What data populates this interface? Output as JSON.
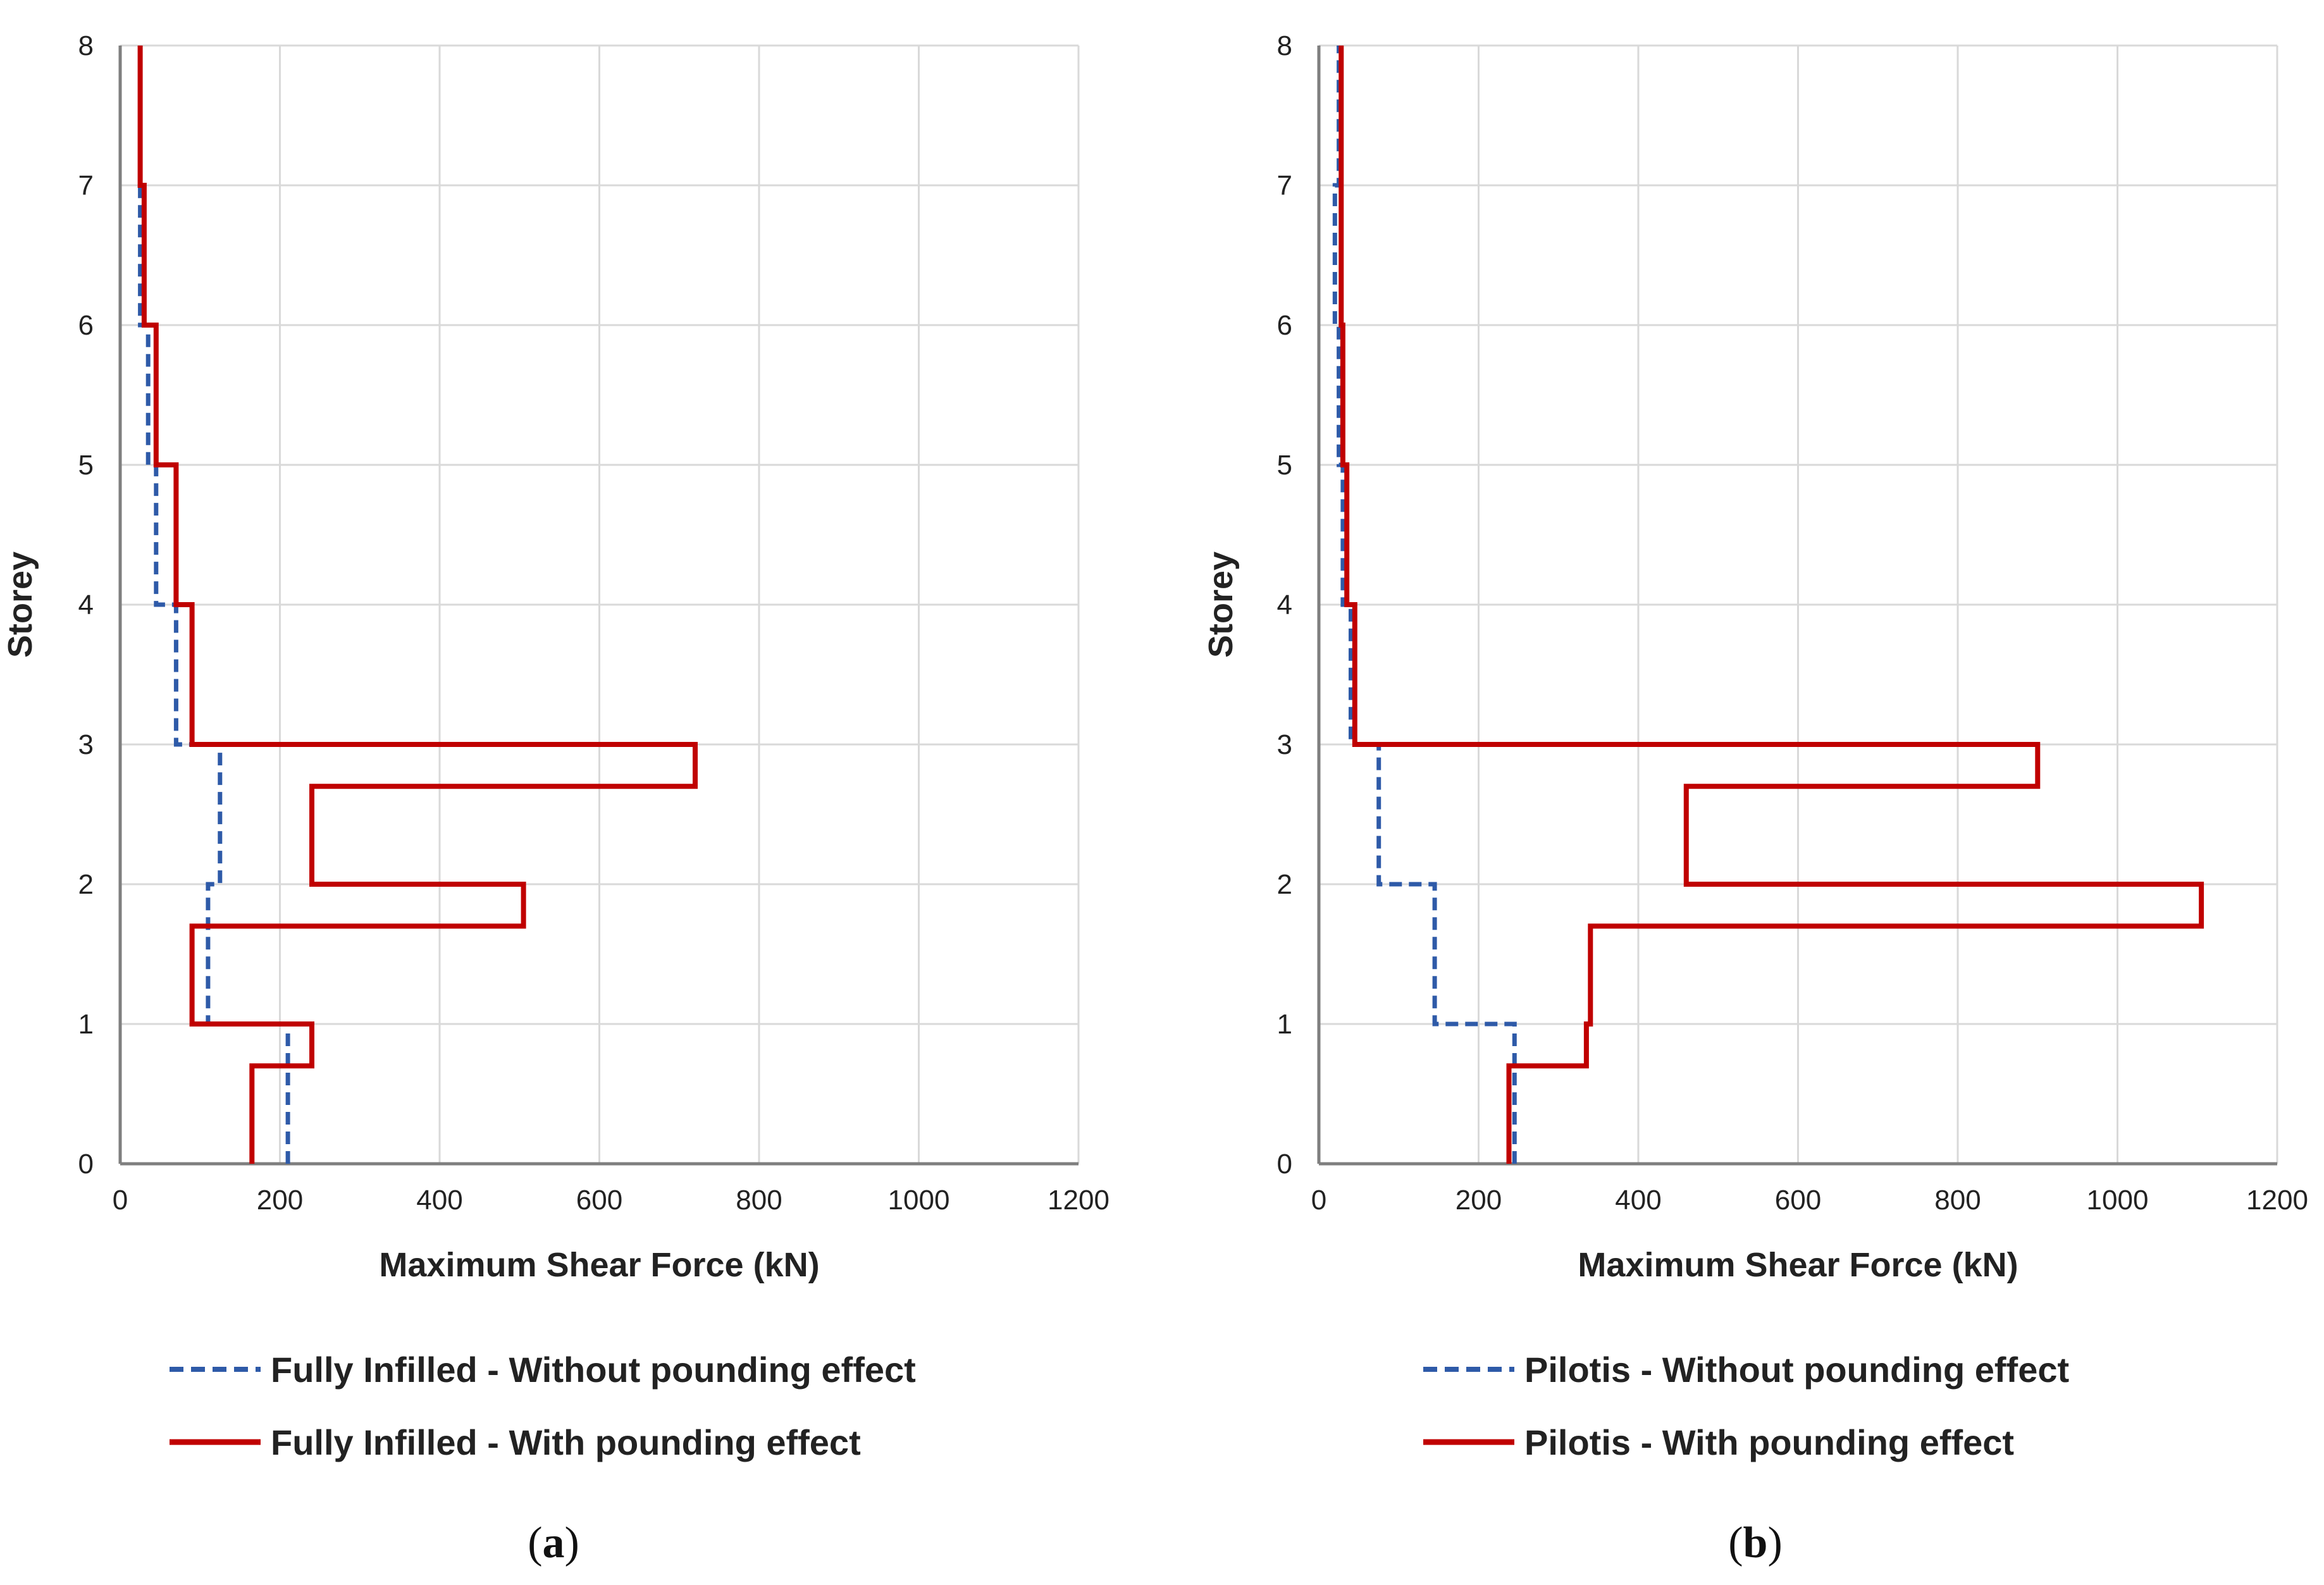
{
  "chart_data": [
    {
      "type": "line",
      "panel": "a",
      "caption_open": "(",
      "caption_letter": "a",
      "caption_close": ")",
      "xlabel": "Maximum Shear Force (kN)",
      "ylabel": "Storey",
      "xlim": [
        0,
        1200
      ],
      "ylim": [
        0,
        8
      ],
      "x_ticks": [
        0,
        200,
        400,
        600,
        800,
        1000,
        1200
      ],
      "y_ticks": [
        0,
        1,
        2,
        3,
        4,
        5,
        6,
        7,
        8
      ],
      "grid": true,
      "legend_position": "bottom",
      "series": [
        {
          "name": "Fully Infilled - Without pounding effect",
          "color": "#2e5aa8",
          "style": "dashed",
          "points": [
            [
              210,
              0
            ],
            [
              210,
              1
            ],
            [
              110,
              1
            ],
            [
              110,
              2
            ],
            [
              125,
              2
            ],
            [
              125,
              3
            ],
            [
              70,
              3
            ],
            [
              70,
              4
            ],
            [
              45,
              4
            ],
            [
              45,
              5
            ],
            [
              35,
              5
            ],
            [
              35,
              6
            ],
            [
              25,
              6
            ],
            [
              25,
              7
            ],
            [
              25,
              8
            ]
          ]
        },
        {
          "name": "Fully Infilled - With pounding effect",
          "color": "#c00000",
          "style": "solid",
          "points": [
            [
              165,
              0
            ],
            [
              165,
              0.7
            ],
            [
              240,
              0.7
            ],
            [
              240,
              1
            ],
            [
              90,
              1
            ],
            [
              90,
              1.7
            ],
            [
              505,
              1.7
            ],
            [
              505,
              2
            ],
            [
              240,
              2
            ],
            [
              240,
              2.7
            ],
            [
              720,
              2.7
            ],
            [
              720,
              3
            ],
            [
              90,
              3
            ],
            [
              90,
              4
            ],
            [
              70,
              4
            ],
            [
              70,
              5
            ],
            [
              45,
              5
            ],
            [
              45,
              6
            ],
            [
              30,
              6
            ],
            [
              30,
              7
            ],
            [
              25,
              7
            ],
            [
              25,
              8
            ]
          ]
        }
      ]
    },
    {
      "type": "line",
      "panel": "b",
      "caption_open": "(",
      "caption_letter": "b",
      "caption_close": ")",
      "xlabel": "Maximum Shear Force (kN)",
      "ylabel": "Storey",
      "xlim": [
        0,
        1200
      ],
      "ylim": [
        0,
        8
      ],
      "x_ticks": [
        0,
        200,
        400,
        600,
        800,
        1000,
        1200
      ],
      "y_ticks": [
        0,
        1,
        2,
        3,
        4,
        5,
        6,
        7,
        8
      ],
      "grid": true,
      "legend_position": "bottom",
      "series": [
        {
          "name": "Pilotis - Without pounding effect",
          "color": "#2e5aa8",
          "style": "dashed",
          "points": [
            [
              245,
              0
            ],
            [
              245,
              1
            ],
            [
              145,
              1
            ],
            [
              145,
              2
            ],
            [
              75,
              2
            ],
            [
              75,
              3
            ],
            [
              40,
              3
            ],
            [
              40,
              4
            ],
            [
              30,
              4
            ],
            [
              30,
              5
            ],
            [
              25,
              5
            ],
            [
              25,
              6
            ],
            [
              20,
              6
            ],
            [
              20,
              7
            ],
            [
              25,
              7
            ],
            [
              25,
              8
            ]
          ]
        },
        {
          "name": "Pilotis - With pounding effect",
          "color": "#c00000",
          "style": "solid",
          "points": [
            [
              238,
              0
            ],
            [
              238,
              0.7
            ],
            [
              335,
              0.7
            ],
            [
              335,
              1
            ],
            [
              340,
              1
            ],
            [
              340,
              1.7
            ],
            [
              1105,
              1.7
            ],
            [
              1105,
              2
            ],
            [
              460,
              2
            ],
            [
              460,
              2.7
            ],
            [
              900,
              2.7
            ],
            [
              900,
              3
            ],
            [
              45,
              3
            ],
            [
              45,
              4
            ],
            [
              35,
              4
            ],
            [
              35,
              5
            ],
            [
              30,
              5
            ],
            [
              30,
              6
            ],
            [
              28,
              6
            ],
            [
              28,
              7
            ],
            [
              28,
              8
            ]
          ]
        }
      ]
    }
  ]
}
